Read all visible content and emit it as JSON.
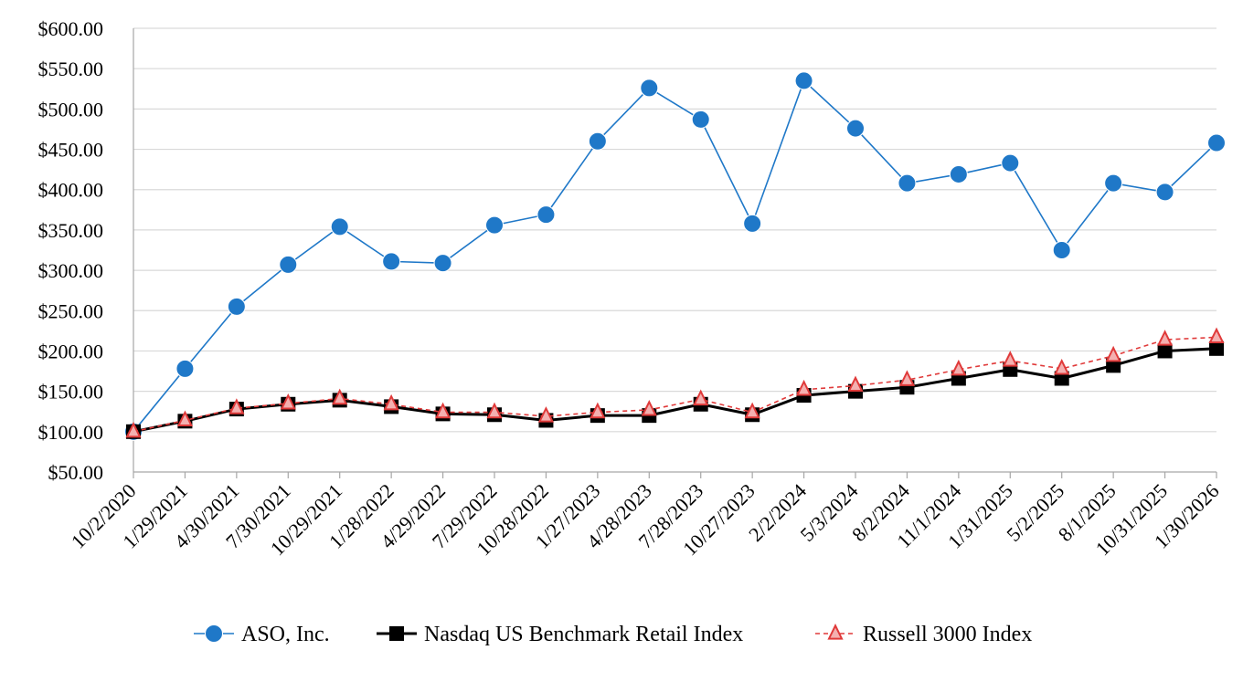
{
  "chart_data": {
    "type": "line",
    "title": "",
    "xlabel": "",
    "ylabel": "",
    "categories": [
      "10/2/2020",
      "1/29/2021",
      "4/30/2021",
      "7/30/2021",
      "10/29/2021",
      "1/28/2022",
      "4/29/2022",
      "7/29/2022",
      "10/28/2022",
      "1/27/2023",
      "4/28/2023",
      "7/28/2023",
      "10/27/2023",
      "2/2/2024",
      "5/3/2024",
      "8/2/2024",
      "11/1/2024",
      "1/31/2025",
      "5/2/2025",
      "8/1/2025",
      "10/31/2025",
      "1/30/2026"
    ],
    "y_ticks": [
      "$50.00",
      "$100.00",
      "$150.00",
      "$200.00",
      "$250.00",
      "$300.00",
      "$350.00",
      "$400.00",
      "$450.00",
      "$500.00",
      "$550.00",
      "$600.00"
    ],
    "ylim": [
      50,
      600
    ],
    "grid": "horizontal",
    "legend_position": "bottom",
    "series": [
      {
        "name": "ASO, Inc.",
        "color": "#1f78c8",
        "marker": "circle",
        "line_style": "solid",
        "values": [
          100,
          178,
          255,
          307,
          354,
          311,
          309,
          356,
          369,
          460,
          526,
          487,
          358,
          535,
          476,
          408,
          419,
          433,
          325,
          408,
          397,
          458
        ]
      },
      {
        "name": "Nasdaq US Benchmark Retail Index",
        "color": "#000000",
        "marker": "square",
        "line_style": "solid",
        "values": [
          100,
          113,
          128,
          134,
          139,
          131,
          122,
          121,
          114,
          120,
          120,
          134,
          121,
          145,
          150,
          155,
          166,
          177,
          166,
          182,
          200,
          203
        ]
      },
      {
        "name": "Russell 3000 Index",
        "color": "#e03a3a",
        "marker": "triangle",
        "line_style": "dashed",
        "values": [
          100,
          114,
          129,
          135,
          141,
          134,
          124,
          124,
          119,
          124,
          127,
          140,
          124,
          152,
          157,
          164,
          177,
          188,
          178,
          194,
          214,
          217
        ]
      }
    ]
  }
}
